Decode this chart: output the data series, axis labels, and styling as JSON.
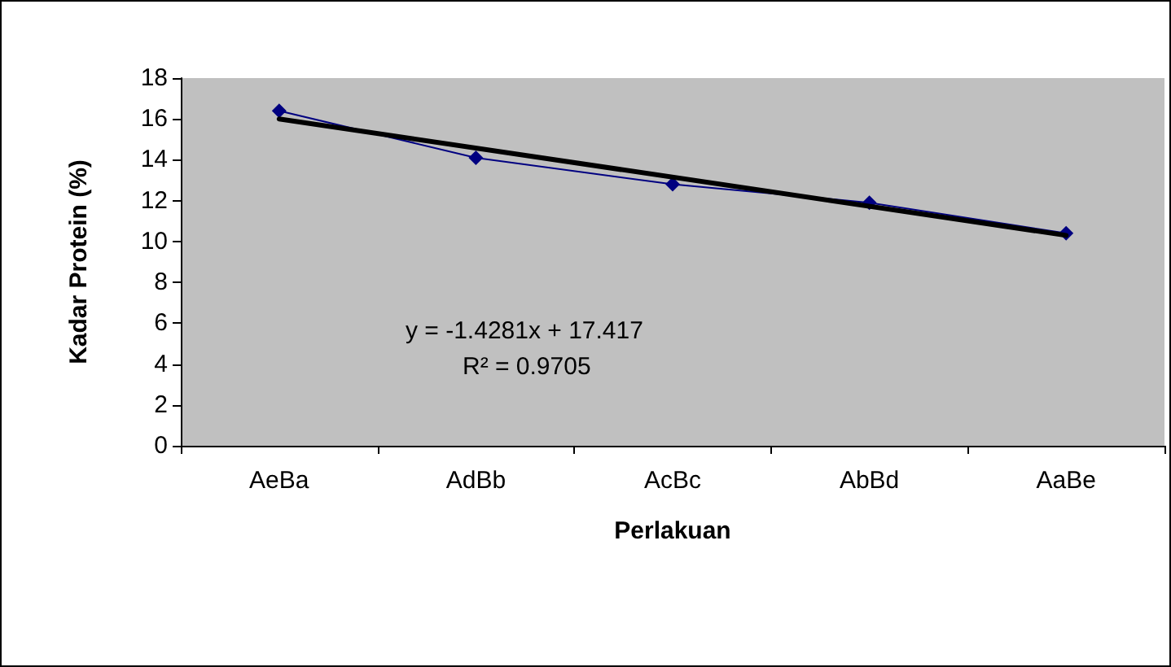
{
  "chart_data": {
    "type": "line",
    "xlabel": "Perlakuan",
    "ylabel": "Kadar Protein (%)",
    "categories": [
      "AeBa",
      "AdBb",
      "AcBc",
      "AbBd",
      "AaBe"
    ],
    "series": [
      {
        "color": "#000080",
        "values": [
          16.4,
          14.1,
          12.8,
          11.9,
          10.4
        ],
        "marker": "diamond"
      },
      {
        "type": "line",
        "color": "#000000",
        "x": [
          "AeBa",
          "AaBe"
        ],
        "values": [
          16.0,
          10.3
        ],
        "marker": "none"
      }
    ],
    "ylim": [
      0,
      18
    ],
    "yticks": [
      0,
      2,
      4,
      6,
      8,
      10,
      12,
      14,
      16,
      18
    ],
    "grid": false,
    "annotations": [
      "y = -1.4281x + 17.417",
      "R² = 0.9705"
    ]
  }
}
